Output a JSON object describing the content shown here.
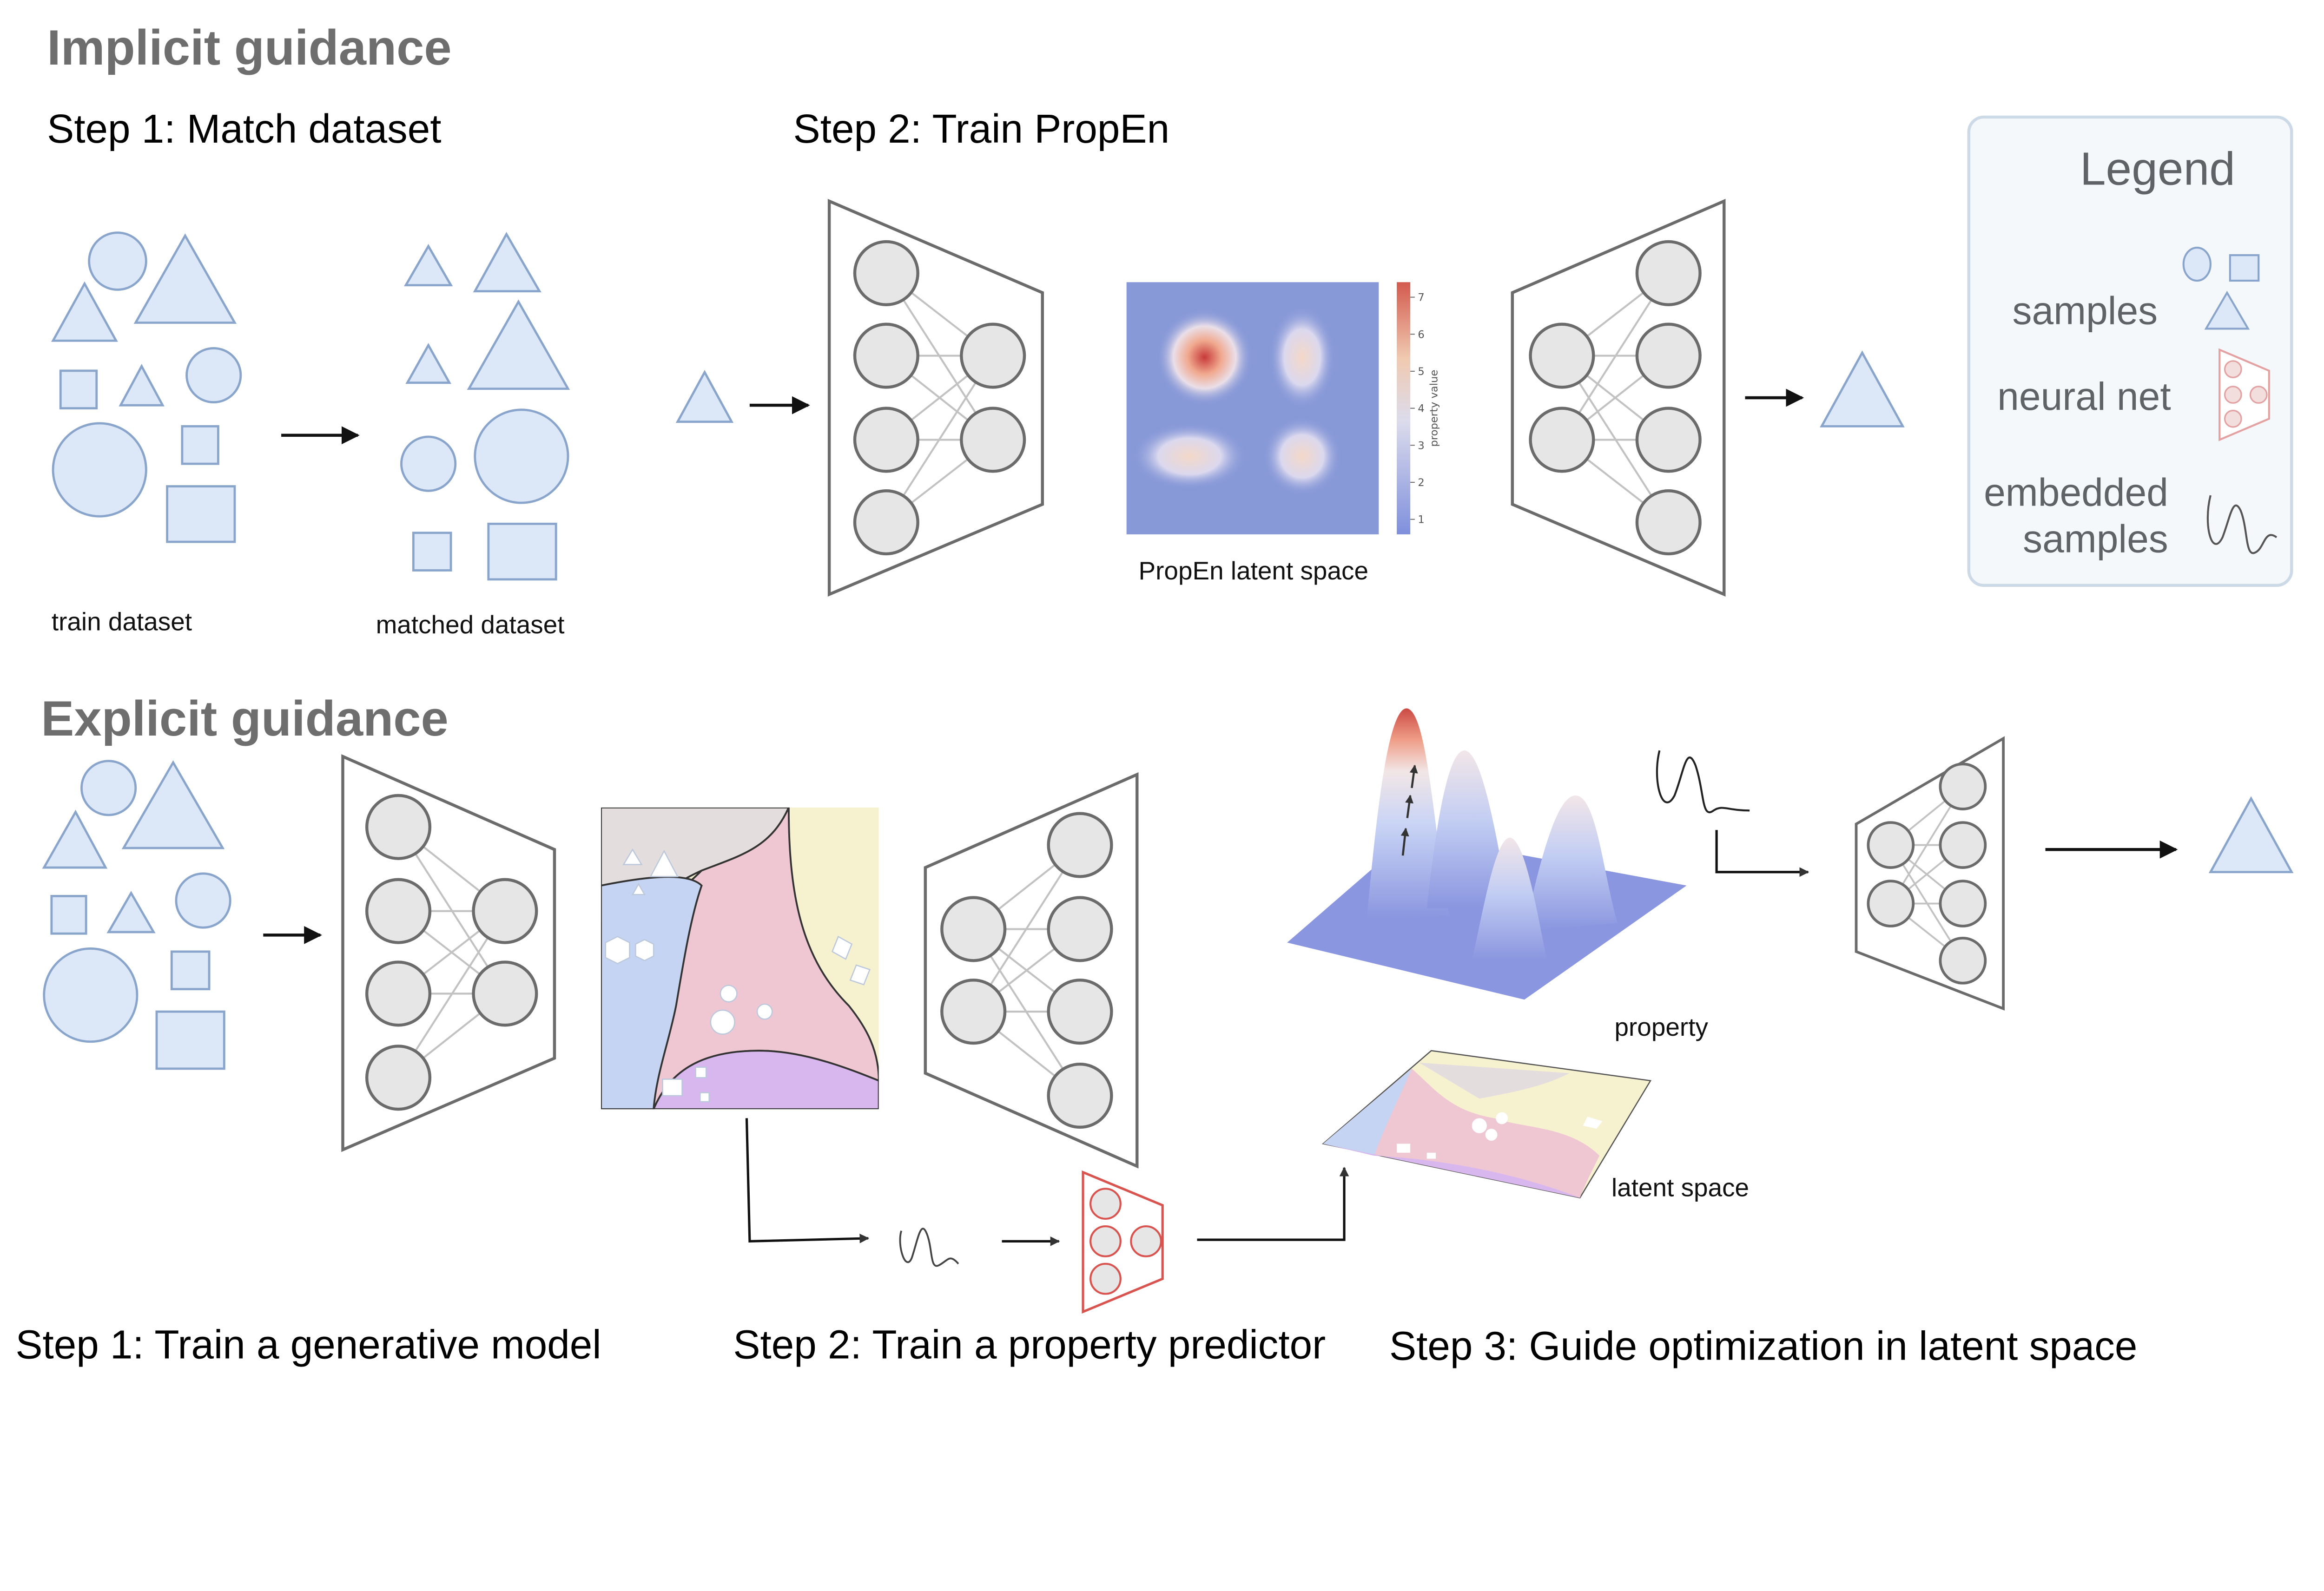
{
  "implicit": {
    "title": "Implicit guidance",
    "step1": "Step 1: Match dataset",
    "step2": "Step 2: Train PropEn",
    "train_caption": "train dataset",
    "matched_caption": "matched dataset",
    "latent_caption": "PropEn latent space",
    "colorbar_label": "property value",
    "colorbar_ticks": [
      "1",
      "2",
      "3",
      "4",
      "5",
      "6",
      "7"
    ]
  },
  "legend": {
    "title": "Legend",
    "samples": "samples",
    "neural_net": "neural net",
    "embedded_line1": "embedded",
    "embedded_line2": "samples"
  },
  "explicit": {
    "title": "Explicit guidance",
    "step1": "Step 1: Train a generative model",
    "step2": "Step 2: Train a property predictor",
    "step3": "Step 3: Guide optimization in latent space",
    "property_caption": "property",
    "latent_space_caption": "latent space"
  },
  "colors": {
    "title_gray": "#6e6e6e",
    "shape_fill": "#dce8f8",
    "shape_stroke": "#8aa5cc",
    "net_stroke": "#6b6b6b",
    "node_fill": "#e6e6e6",
    "predictor_red": "#d9534f",
    "region_gray": "#e3dddd",
    "region_yellow": "#f6f1cf",
    "region_pink": "#efc7d2",
    "region_blue": "#c5d4f2",
    "region_purple": "#d8b7ee",
    "heatmap_base": "#8899d8"
  }
}
